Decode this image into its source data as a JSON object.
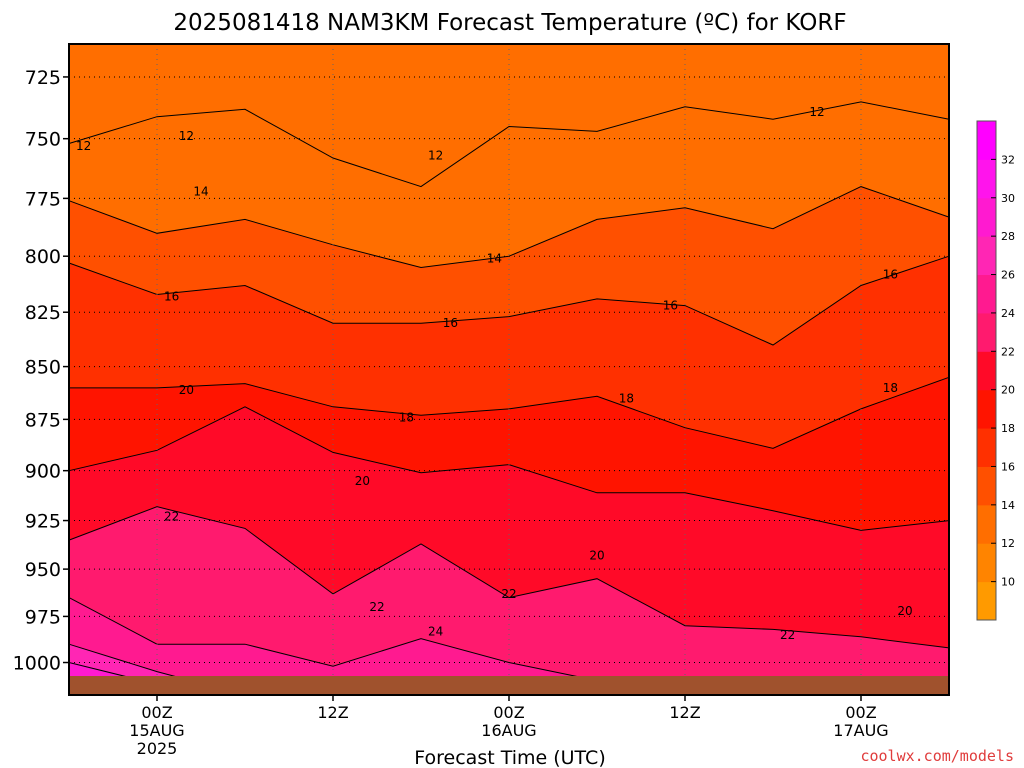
{
  "chart_data": {
    "type": "heatmap",
    "title": "2025081418 NAM3KM Forecast Temperature (ºC) for KORF",
    "xlabel": "Forecast Time (UTC)",
    "ylabel": "",
    "credit": "coolwx.com/models",
    "y_axis": {
      "scale": "log-pressure",
      "range": [
        1018,
        712
      ],
      "ticks": [
        725,
        750,
        775,
        800,
        825,
        850,
        875,
        900,
        925,
        950,
        975,
        1000
      ],
      "tick_labels": [
        "725",
        "750",
        "775",
        "800",
        "825",
        "850",
        "875",
        "900",
        "925",
        "950",
        "975",
        "1000"
      ]
    },
    "x_axis": {
      "range_hours": [
        -5,
        55
      ],
      "ticks": [
        {
          "hour": 1,
          "label": [
            "00Z",
            "15AUG",
            "2025"
          ]
        },
        {
          "hour": 13,
          "label": [
            "12Z"
          ]
        },
        {
          "hour": 25,
          "label": [
            "00Z",
            "16AUG"
          ]
        },
        {
          "hour": 37,
          "label": [
            "12Z"
          ]
        },
        {
          "hour": 49,
          "label": [
            "00Z",
            "17AUG"
          ]
        }
      ]
    },
    "grid": true,
    "colorbar": {
      "levels": [
        8,
        10,
        12,
        14,
        16,
        18,
        20,
        22,
        24,
        26,
        28,
        30,
        32,
        34
      ],
      "tick_labels": [
        "10",
        "12",
        "14",
        "16",
        "18",
        "20",
        "22",
        "24",
        "26",
        "28",
        "30",
        "32"
      ],
      "colors": [
        "#FF9A00",
        "#FF8400",
        "#FF6E00",
        "#FF5000",
        "#FF3000",
        "#FF1400",
        "#FF0A28",
        "#FF1A6E",
        "#FF1A90",
        "#FF26B4",
        "#FF1AD0",
        "#FF14EC",
        "#FF00FF"
      ],
      "placement": "right"
    },
    "x_hours": [
      -5,
      1,
      7,
      13,
      19,
      25,
      31,
      37,
      43,
      49,
      55
    ],
    "isotherm_pressure_levels": [
      {
        "temp_c": 14,
        "pressure_hpa": [
          776,
          790,
          784,
          795,
          805,
          800,
          784,
          779,
          788,
          770,
          783
        ]
      },
      {
        "temp_c": 16,
        "pressure_hpa": [
          803,
          817,
          813,
          830,
          830,
          827,
          819,
          822,
          840,
          813,
          800
        ]
      },
      {
        "temp_c": 18,
        "pressure_hpa": [
          860,
          860,
          858,
          869,
          873,
          870,
          864,
          879,
          889,
          870,
          855
        ]
      },
      {
        "temp_c": 20,
        "pressure_hpa": [
          900,
          890,
          869,
          891,
          901,
          897,
          911,
          911,
          920,
          930,
          925
        ]
      },
      {
        "temp_c": 22,
        "pressure_hpa": [
          935,
          918,
          929,
          963,
          937,
          965,
          955,
          980,
          982,
          986,
          992
        ]
      },
      {
        "temp_c": 24,
        "pressure_hpa": [
          965,
          990,
          990,
          1002,
          987,
          1000,
          1010,
          1010,
          1015,
          1017,
          1018
        ]
      },
      {
        "temp_c": 26,
        "pressure_hpa": [
          990,
          1005,
          1018,
          1018,
          1018,
          1018,
          1018,
          1018,
          1018,
          1018,
          1018
        ]
      },
      {
        "temp_c": 28,
        "pressure_hpa": [
          1000,
          1012,
          1018,
          1018,
          1018,
          1018,
          1018,
          1018,
          1018,
          1018,
          1018
        ]
      }
    ],
    "contour_labels": [
      {
        "text": "12",
        "hour": -4,
        "pressure_hpa": 753
      },
      {
        "text": "12",
        "hour": 3,
        "pressure_hpa": 749
      },
      {
        "text": "12",
        "hour": 20,
        "pressure_hpa": 757
      },
      {
        "text": "12",
        "hour": 46,
        "pressure_hpa": 739
      },
      {
        "text": "14",
        "hour": 4,
        "pressure_hpa": 772
      },
      {
        "text": "14",
        "hour": 24,
        "pressure_hpa": 801
      },
      {
        "text": "16",
        "hour": 2,
        "pressure_hpa": 818
      },
      {
        "text": "16",
        "hour": 21,
        "pressure_hpa": 830
      },
      {
        "text": "16",
        "hour": 36,
        "pressure_hpa": 822
      },
      {
        "text": "16",
        "hour": 51,
        "pressure_hpa": 808
      },
      {
        "text": "18",
        "hour": 18,
        "pressure_hpa": 874
      },
      {
        "text": "18",
        "hour": 33,
        "pressure_hpa": 865
      },
      {
        "text": "18",
        "hour": 51,
        "pressure_hpa": 860
      },
      {
        "text": "20",
        "hour": 3,
        "pressure_hpa": 861
      },
      {
        "text": "20",
        "hour": 15,
        "pressure_hpa": 905
      },
      {
        "text": "20",
        "hour": 31,
        "pressure_hpa": 943
      },
      {
        "text": "20",
        "hour": 52,
        "pressure_hpa": 972
      },
      {
        "text": "22",
        "hour": 2,
        "pressure_hpa": 923
      },
      {
        "text": "22",
        "hour": 16,
        "pressure_hpa": 970
      },
      {
        "text": "22",
        "hour": 25,
        "pressure_hpa": 963
      },
      {
        "text": "22",
        "hour": 44,
        "pressure_hpa": 985
      },
      {
        "text": "24",
        "hour": 20,
        "pressure_hpa": 983
      }
    ]
  }
}
